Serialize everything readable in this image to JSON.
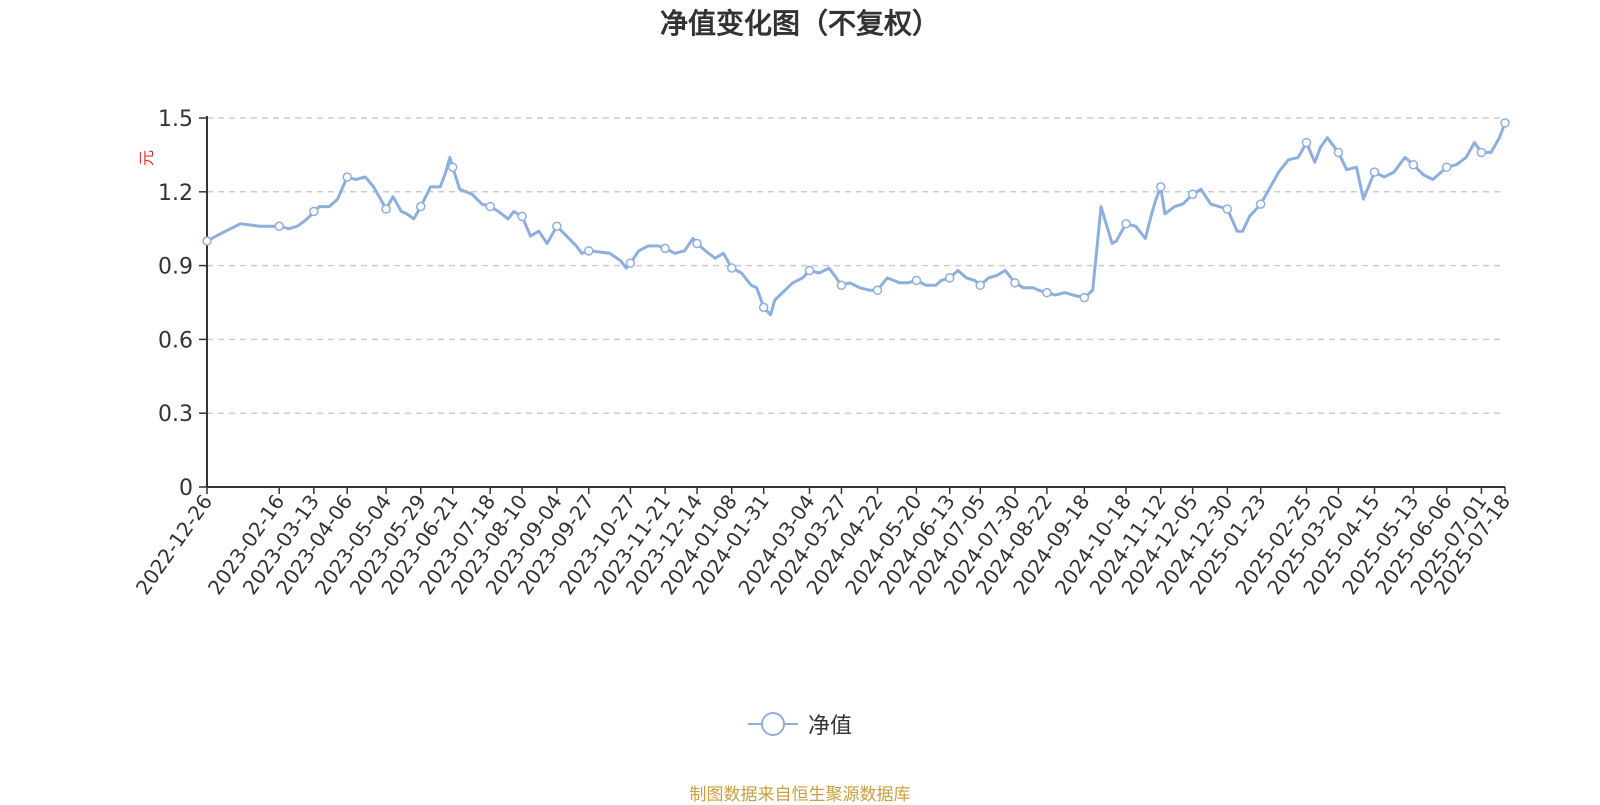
{
  "colors": {
    "line": "#8eafdc",
    "axis": "#333333",
    "grid": "#cccccc",
    "unit": "#e03030",
    "title": "#333333",
    "source": "#c8a040"
  },
  "chart_data": {
    "type": "line",
    "title": "净值变化图（不复权）",
    "ylabel": "元",
    "ylim": [
      0,
      1.5
    ],
    "yticks": [
      "0",
      "0.3",
      "0.6",
      "0.9",
      "1.2",
      "1.5"
    ],
    "grid": true,
    "legend_position": "bottom-center",
    "x_tick_labels": [
      "2022-12-26",
      "2023-02-16",
      "2023-03-13",
      "2023-04-06",
      "2023-05-04",
      "2023-05-29",
      "2023-06-21",
      "2023-07-18",
      "2023-08-10",
      "2023-09-04",
      "2023-09-27",
      "2023-10-27",
      "2023-11-21",
      "2023-12-14",
      "2024-01-08",
      "2024-01-31",
      "2024-03-04",
      "2024-03-27",
      "2024-04-22",
      "2024-05-20",
      "2024-06-13",
      "2024-07-05",
      "2024-07-30",
      "2024-08-22",
      "2024-09-18",
      "2024-10-18",
      "2024-11-12",
      "2024-12-05",
      "2024-12-30",
      "2025-01-23",
      "2025-02-25",
      "2025-03-20",
      "2025-04-15",
      "2025-05-13",
      "2025-06-06",
      "2025-07-01",
      "2025-07-18"
    ],
    "series": [
      {
        "name": "净值",
        "marker_points": [
          [
            "2022-12-26",
            1.0
          ],
          [
            "2023-02-16",
            1.06
          ],
          [
            "2023-03-13",
            1.12
          ],
          [
            "2023-04-06",
            1.26
          ],
          [
            "2023-05-04",
            1.13
          ],
          [
            "2023-05-29",
            1.14
          ],
          [
            "2023-06-21",
            1.3
          ],
          [
            "2023-07-18",
            1.14
          ],
          [
            "2023-08-10",
            1.1
          ],
          [
            "2023-09-04",
            1.06
          ],
          [
            "2023-09-27",
            0.96
          ],
          [
            "2023-10-27",
            0.91
          ],
          [
            "2023-11-21",
            0.97
          ],
          [
            "2023-12-14",
            0.99
          ],
          [
            "2024-01-08",
            0.89
          ],
          [
            "2024-01-31",
            0.73
          ],
          [
            "2024-03-04",
            0.88
          ],
          [
            "2024-03-27",
            0.82
          ],
          [
            "2024-04-22",
            0.8
          ],
          [
            "2024-05-20",
            0.84
          ],
          [
            "2024-06-13",
            0.85
          ],
          [
            "2024-07-05",
            0.82
          ],
          [
            "2024-07-30",
            0.83
          ],
          [
            "2024-08-22",
            0.79
          ],
          [
            "2024-09-18",
            0.77
          ],
          [
            "2024-10-18",
            1.07
          ],
          [
            "2024-11-12",
            1.22
          ],
          [
            "2024-12-05",
            1.19
          ],
          [
            "2024-12-30",
            1.13
          ],
          [
            "2025-01-23",
            1.15
          ],
          [
            "2025-02-25",
            1.4
          ],
          [
            "2025-03-20",
            1.36
          ],
          [
            "2025-04-15",
            1.28
          ],
          [
            "2025-05-13",
            1.31
          ],
          [
            "2025-06-06",
            1.3
          ],
          [
            "2025-07-01",
            1.36
          ],
          [
            "2025-07-18",
            1.48
          ]
        ],
        "values": [
          [
            "2022-12-26",
            1.0
          ],
          [
            "2023-01-05",
            1.03
          ],
          [
            "2023-01-12",
            1.05
          ],
          [
            "2023-01-19",
            1.07
          ],
          [
            "2023-02-02",
            1.06
          ],
          [
            "2023-02-09",
            1.06
          ],
          [
            "2023-02-16",
            1.06
          ],
          [
            "2023-02-23",
            1.05
          ],
          [
            "2023-03-01",
            1.06
          ],
          [
            "2023-03-06",
            1.08
          ],
          [
            "2023-03-10",
            1.1
          ],
          [
            "2023-03-13",
            1.12
          ],
          [
            "2023-03-17",
            1.14
          ],
          [
            "2023-03-24",
            1.14
          ],
          [
            "2023-03-30",
            1.17
          ],
          [
            "2023-04-06",
            1.26
          ],
          [
            "2023-04-12",
            1.25
          ],
          [
            "2023-04-19",
            1.26
          ],
          [
            "2023-04-25",
            1.22
          ],
          [
            "2023-05-04",
            1.13
          ],
          [
            "2023-05-09",
            1.18
          ],
          [
            "2023-05-15",
            1.12
          ],
          [
            "2023-05-19",
            1.11
          ],
          [
            "2023-05-24",
            1.09
          ],
          [
            "2023-05-29",
            1.14
          ],
          [
            "2023-06-05",
            1.22
          ],
          [
            "2023-06-12",
            1.22
          ],
          [
            "2023-06-16",
            1.28
          ],
          [
            "2023-06-19",
            1.34
          ],
          [
            "2023-06-21",
            1.3
          ],
          [
            "2023-06-26",
            1.21
          ],
          [
            "2023-07-05",
            1.19
          ],
          [
            "2023-07-12",
            1.15
          ],
          [
            "2023-07-18",
            1.14
          ],
          [
            "2023-07-24",
            1.12
          ],
          [
            "2023-07-31",
            1.09
          ],
          [
            "2023-08-04",
            1.12
          ],
          [
            "2023-08-10",
            1.1
          ],
          [
            "2023-08-16",
            1.02
          ],
          [
            "2023-08-22",
            1.04
          ],
          [
            "2023-08-28",
            0.99
          ],
          [
            "2023-09-04",
            1.06
          ],
          [
            "2023-09-11",
            1.02
          ],
          [
            "2023-09-18",
            0.98
          ],
          [
            "2023-09-22",
            0.95
          ],
          [
            "2023-09-27",
            0.96
          ],
          [
            "2023-10-12",
            0.95
          ],
          [
            "2023-10-20",
            0.92
          ],
          [
            "2023-10-24",
            0.89
          ],
          [
            "2023-10-27",
            0.91
          ],
          [
            "2023-11-02",
            0.96
          ],
          [
            "2023-11-09",
            0.98
          ],
          [
            "2023-11-16",
            0.98
          ],
          [
            "2023-11-21",
            0.97
          ],
          [
            "2023-11-28",
            0.95
          ],
          [
            "2023-12-05",
            0.96
          ],
          [
            "2023-12-11",
            1.01
          ],
          [
            "2023-12-14",
            0.99
          ],
          [
            "2023-12-20",
            0.96
          ],
          [
            "2023-12-27",
            0.93
          ],
          [
            "2024-01-02",
            0.95
          ],
          [
            "2024-01-08",
            0.89
          ],
          [
            "2024-01-15",
            0.87
          ],
          [
            "2024-01-22",
            0.82
          ],
          [
            "2024-01-26",
            0.81
          ],
          [
            "2024-01-31",
            0.73
          ],
          [
            "2024-02-05",
            0.7
          ],
          [
            "2024-02-08",
            0.76
          ],
          [
            "2024-02-21",
            0.83
          ],
          [
            "2024-02-28",
            0.85
          ],
          [
            "2024-03-04",
            0.88
          ],
          [
            "2024-03-11",
            0.87
          ],
          [
            "2024-03-18",
            0.89
          ],
          [
            "2024-03-22",
            0.86
          ],
          [
            "2024-03-27",
            0.82
          ],
          [
            "2024-04-02",
            0.83
          ],
          [
            "2024-04-09",
            0.81
          ],
          [
            "2024-04-16",
            0.8
          ],
          [
            "2024-04-22",
            0.8
          ],
          [
            "2024-04-29",
            0.85
          ],
          [
            "2024-05-08",
            0.83
          ],
          [
            "2024-05-14",
            0.83
          ],
          [
            "2024-05-20",
            0.84
          ],
          [
            "2024-05-27",
            0.82
          ],
          [
            "2024-06-03",
            0.82
          ],
          [
            "2024-06-07",
            0.84
          ],
          [
            "2024-06-13",
            0.85
          ],
          [
            "2024-06-19",
            0.88
          ],
          [
            "2024-06-25",
            0.85
          ],
          [
            "2024-07-01",
            0.84
          ],
          [
            "2024-07-05",
            0.82
          ],
          [
            "2024-07-11",
            0.85
          ],
          [
            "2024-07-17",
            0.86
          ],
          [
            "2024-07-23",
            0.88
          ],
          [
            "2024-07-30",
            0.83
          ],
          [
            "2024-08-05",
            0.81
          ],
          [
            "2024-08-12",
            0.81
          ],
          [
            "2024-08-16",
            0.8
          ],
          [
            "2024-08-22",
            0.79
          ],
          [
            "2024-08-28",
            0.78
          ],
          [
            "2024-09-04",
            0.79
          ],
          [
            "2024-09-10",
            0.78
          ],
          [
            "2024-09-18",
            0.77
          ],
          [
            "2024-09-24",
            0.8
          ],
          [
            "2024-09-27",
            0.97
          ],
          [
            "2024-09-30",
            1.14
          ],
          [
            "2024-10-08",
            0.99
          ],
          [
            "2024-10-11",
            1.0
          ],
          [
            "2024-10-18",
            1.07
          ],
          [
            "2024-10-25",
            1.06
          ],
          [
            "2024-11-01",
            1.01
          ],
          [
            "2024-11-05",
            1.1
          ],
          [
            "2024-11-08",
            1.16
          ],
          [
            "2024-11-12",
            1.22
          ],
          [
            "2024-11-15",
            1.11
          ],
          [
            "2024-11-22",
            1.14
          ],
          [
            "2024-11-28",
            1.15
          ],
          [
            "2024-12-05",
            1.19
          ],
          [
            "2024-12-11",
            1.21
          ],
          [
            "2024-12-18",
            1.15
          ],
          [
            "2024-12-24",
            1.14
          ],
          [
            "2024-12-30",
            1.13
          ],
          [
            "2025-01-06",
            1.04
          ],
          [
            "2025-01-10",
            1.04
          ],
          [
            "2025-01-15",
            1.1
          ],
          [
            "2025-01-23",
            1.15
          ],
          [
            "2025-02-05",
            1.28
          ],
          [
            "2025-02-12",
            1.33
          ],
          [
            "2025-02-19",
            1.34
          ],
          [
            "2025-02-25",
            1.4
          ],
          [
            "2025-03-03",
            1.32
          ],
          [
            "2025-03-07",
            1.38
          ],
          [
            "2025-03-12",
            1.42
          ],
          [
            "2025-03-20",
            1.36
          ],
          [
            "2025-03-26",
            1.29
          ],
          [
            "2025-04-02",
            1.3
          ],
          [
            "2025-04-07",
            1.17
          ],
          [
            "2025-04-15",
            1.28
          ],
          [
            "2025-04-22",
            1.26
          ],
          [
            "2025-04-29",
            1.28
          ],
          [
            "2025-05-07",
            1.34
          ],
          [
            "2025-05-13",
            1.31
          ],
          [
            "2025-05-20",
            1.27
          ],
          [
            "2025-05-27",
            1.25
          ],
          [
            "2025-06-06",
            1.3
          ],
          [
            "2025-06-13",
            1.31
          ],
          [
            "2025-06-20",
            1.34
          ],
          [
            "2025-06-26",
            1.4
          ],
          [
            "2025-07-01",
            1.36
          ],
          [
            "2025-07-08",
            1.36
          ],
          [
            "2025-07-14",
            1.42
          ],
          [
            "2025-07-18",
            1.48
          ]
        ]
      }
    ]
  },
  "legend": {
    "label": "净值"
  },
  "source_note": "制图数据来自恒生聚源数据库"
}
